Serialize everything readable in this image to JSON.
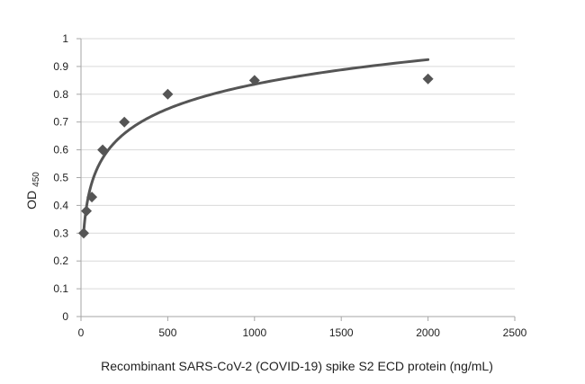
{
  "chart_data": {
    "type": "scatter",
    "xlabel": "Recombinant SARS-CoV-2 (COVID-19) spike S2 ECD protein (ng/mL)",
    "ylabel_main": "OD",
    "ylabel_sub": "450",
    "xlim": [
      0,
      2500
    ],
    "ylim": [
      0,
      1
    ],
    "x_ticks": [
      "0",
      "500",
      "1000",
      "1500",
      "2000",
      "2500"
    ],
    "y_ticks": [
      "0",
      "0.1",
      "0.2",
      "0.3",
      "0.4",
      "0.5",
      "0.6",
      "0.7",
      "0.8",
      "0.9",
      "1"
    ],
    "grid": true,
    "legend": "none",
    "marker": "diamond",
    "trendline": "logarithmic",
    "series": [
      {
        "x": [
          15.6,
          31.25,
          62.5,
          125,
          250,
          500,
          1000,
          2000
        ],
        "y": [
          0.3,
          0.38,
          0.43,
          0.6,
          0.7,
          0.8,
          0.85,
          0.855
        ],
        "color": "#555555"
      }
    ],
    "colors": {
      "axis": "#a6a6a6",
      "grid": "#d9d9d9",
      "marks": "#555555"
    }
  }
}
